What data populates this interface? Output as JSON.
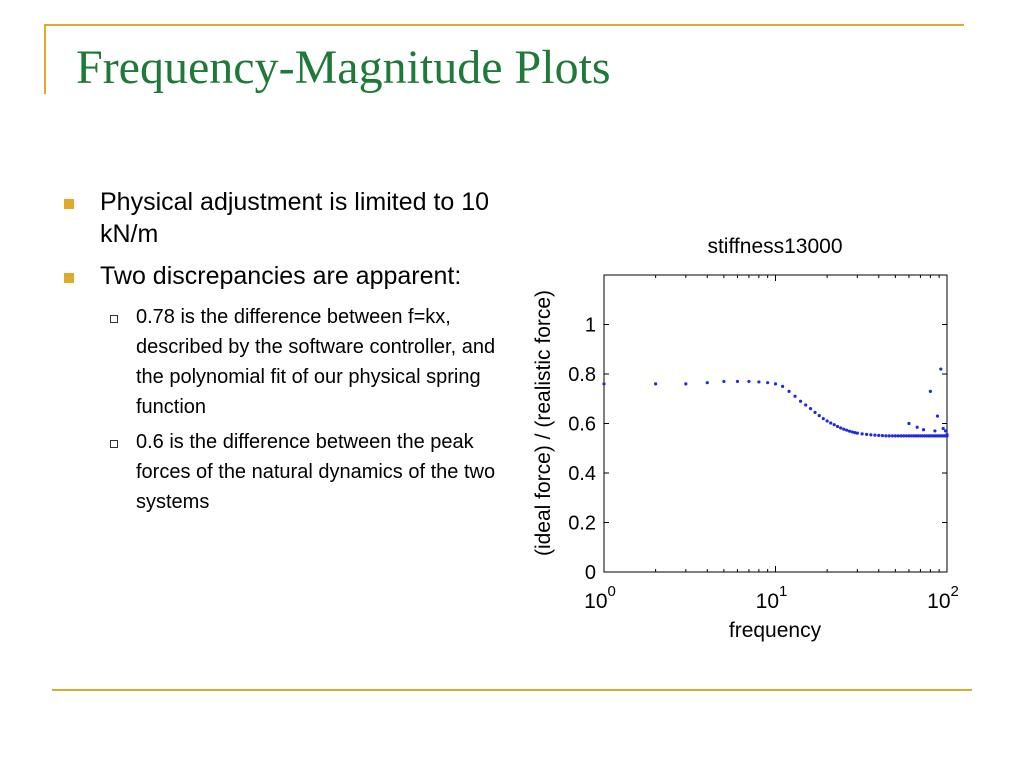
{
  "colors": {
    "title": "#1f7a3a",
    "rule": "#e0a92a",
    "bullet_marker": "#e0a92a",
    "series": "#1f2bdc"
  },
  "slide": {
    "title": "Frequency-Magnitude Plots",
    "bullets": [
      {
        "text": "Physical adjustment is limited to 10 kN/m"
      },
      {
        "text": "Two discrepancies are apparent:",
        "sub": [
          {
            "text": "0.78 is the difference between f=kx, described by the software controller, and the polynomial fit of our physical spring function"
          },
          {
            "text": "0.6 is the difference between the peak forces of the natural dynamics of the two systems"
          }
        ]
      }
    ]
  },
  "chart_data": {
    "type": "scatter",
    "title": "stiffness13000",
    "xlabel": "frequency",
    "ylabel": "(ideal force) / (realistic force)",
    "xscale": "log",
    "xlim": [
      1,
      100
    ],
    "ylim": [
      0,
      1.2
    ],
    "xticks": [
      {
        "value": 1,
        "base": "10",
        "exp": "0"
      },
      {
        "value": 10,
        "base": "10",
        "exp": "1"
      },
      {
        "value": 100,
        "base": "10",
        "exp": "2"
      }
    ],
    "yticks": [
      {
        "value": 0,
        "label": "0"
      },
      {
        "value": 0.2,
        "label": "0.2"
      },
      {
        "value": 0.4,
        "label": "0.4"
      },
      {
        "value": 0.6,
        "label": "0.6"
      },
      {
        "value": 0.8,
        "label": "0.8"
      },
      {
        "value": 1,
        "label": "1"
      }
    ],
    "grid": false,
    "series": [
      {
        "points": [
          [
            1,
            0.76
          ],
          [
            2,
            0.76
          ],
          [
            3,
            0.76
          ],
          [
            4,
            0.765
          ],
          [
            5,
            0.77
          ],
          [
            6,
            0.77
          ],
          [
            7,
            0.77
          ],
          [
            8,
            0.768
          ],
          [
            9,
            0.765
          ],
          [
            10,
            0.76
          ],
          [
            11,
            0.75
          ],
          [
            12,
            0.73
          ],
          [
            13,
            0.71
          ],
          [
            14,
            0.69
          ],
          [
            15,
            0.675
          ],
          [
            16,
            0.66
          ],
          [
            17,
            0.645
          ],
          [
            18,
            0.632
          ],
          [
            19,
            0.62
          ],
          [
            20,
            0.61
          ],
          [
            21,
            0.602
          ],
          [
            22,
            0.595
          ],
          [
            23,
            0.588
          ],
          [
            24,
            0.582
          ],
          [
            25,
            0.577
          ],
          [
            26,
            0.573
          ],
          [
            27,
            0.569
          ],
          [
            28,
            0.566
          ],
          [
            29,
            0.563
          ],
          [
            30,
            0.561
          ],
          [
            32,
            0.558
          ],
          [
            34,
            0.556
          ],
          [
            36,
            0.554
          ],
          [
            38,
            0.553
          ],
          [
            40,
            0.552
          ],
          [
            42,
            0.551
          ],
          [
            44,
            0.55
          ],
          [
            46,
            0.55
          ],
          [
            48,
            0.55
          ],
          [
            50,
            0.55
          ],
          [
            52,
            0.55
          ],
          [
            54,
            0.55
          ],
          [
            56,
            0.55
          ],
          [
            58,
            0.55
          ],
          [
            60,
            0.55
          ],
          [
            62,
            0.55
          ],
          [
            64,
            0.55
          ],
          [
            66,
            0.55
          ],
          [
            68,
            0.55
          ],
          [
            70,
            0.55
          ],
          [
            72,
            0.55
          ],
          [
            74,
            0.55
          ],
          [
            76,
            0.55
          ],
          [
            78,
            0.55
          ],
          [
            80,
            0.55
          ],
          [
            82,
            0.55
          ],
          [
            84,
            0.55
          ],
          [
            86,
            0.55
          ],
          [
            88,
            0.55
          ],
          [
            90,
            0.55
          ],
          [
            92,
            0.55
          ],
          [
            94,
            0.55
          ],
          [
            96,
            0.55
          ],
          [
            98,
            0.55
          ],
          [
            100,
            0.55
          ],
          [
            60,
            0.6
          ],
          [
            67,
            0.585
          ],
          [
            73,
            0.575
          ],
          [
            80,
            0.73
          ],
          [
            85,
            0.57
          ],
          [
            88,
            0.63
          ],
          [
            92,
            0.82
          ],
          [
            95,
            0.58
          ],
          [
            98,
            0.57
          ],
          [
            100,
            0.555
          ]
        ]
      }
    ]
  }
}
